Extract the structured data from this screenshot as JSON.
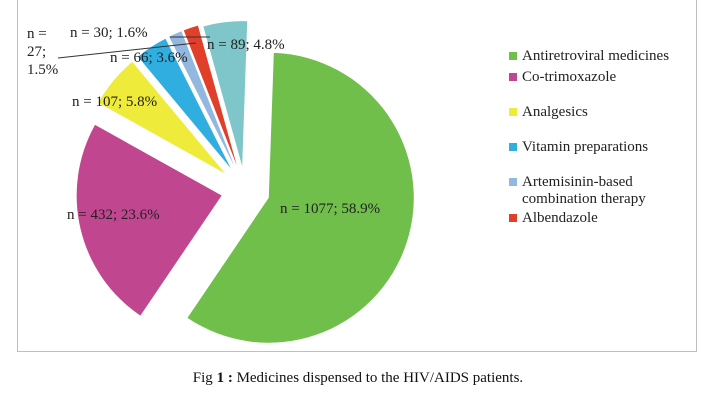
{
  "chart_data": {
    "type": "pie",
    "title": "",
    "slices": [
      {
        "name": "Antiretroviral medicines",
        "n": 1077,
        "percent": 58.9,
        "label": "n = 1077; 58.9%",
        "color": "#70bf4b"
      },
      {
        "name": "Co-trimoxazole",
        "n": 432,
        "percent": 23.6,
        "label": "n = 432; 23.6%",
        "color": "#c0478f"
      },
      {
        "name": "Analgesics",
        "n": 107,
        "percent": 5.8,
        "label": "n = 107; 5.8%",
        "color": "#eeeb3a"
      },
      {
        "name": "Vitamin preparations",
        "n": 66,
        "percent": 3.6,
        "label": "n = 66; 3.6%",
        "color": "#31aee0"
      },
      {
        "name": "Artemisinin-based combination therapy",
        "n": 27,
        "percent": 1.5,
        "label": "n = 27; 1.5%",
        "color": "#93b8df"
      },
      {
        "name": "Albendazole",
        "n": 30,
        "percent": 1.6,
        "label": "n = 30; 1.6%",
        "color": "#e0402a"
      },
      {
        "name": "",
        "n": 89,
        "percent": 4.8,
        "label": "n = 89; 4.8%",
        "color": "#7ec6c9"
      }
    ],
    "legend": [
      "Antiretroviral medicines",
      "Co-trimoxazole",
      "Analgesics",
      "Vitamin preparations",
      "Artemisinin-based combination therapy",
      "Albendazole"
    ],
    "legend_placement": "right"
  },
  "caption": {
    "prefix": "Fig ",
    "number": "1 :",
    "text": " Medicines dispensed to the HIV/AIDS patients."
  }
}
